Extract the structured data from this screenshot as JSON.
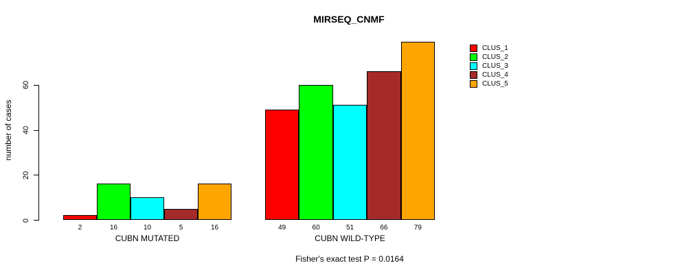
{
  "title": "MIRSEQ_CNMF",
  "footnote": "Fisher's exact test P = 0.0164",
  "chart_data": {
    "type": "bar",
    "title": "MIRSEQ_CNMF",
    "xlabel": "",
    "ylabel": "number of cases",
    "ylim": [
      0,
      80
    ],
    "yticks": [
      0,
      20,
      40,
      60
    ],
    "grid": false,
    "legend_position": "right",
    "categories": [
      "CUBN MUTATED",
      "CUBN WILD-TYPE"
    ],
    "series": [
      {
        "name": "CLUS_1",
        "color": "#FF0000",
        "values": [
          2,
          49
        ]
      },
      {
        "name": "CLUS_2",
        "color": "#00FF00",
        "values": [
          16,
          60
        ]
      },
      {
        "name": "CLUS_3",
        "color": "#00FFFF",
        "values": [
          10,
          51
        ]
      },
      {
        "name": "CLUS_4",
        "color": "#A52A2A",
        "values": [
          5,
          66
        ]
      },
      {
        "name": "CLUS_5",
        "color": "#FFA500",
        "values": [
          16,
          79
        ]
      }
    ],
    "bar_labels_shown": true,
    "annotation": "Fisher's exact test P = 0.0164"
  }
}
